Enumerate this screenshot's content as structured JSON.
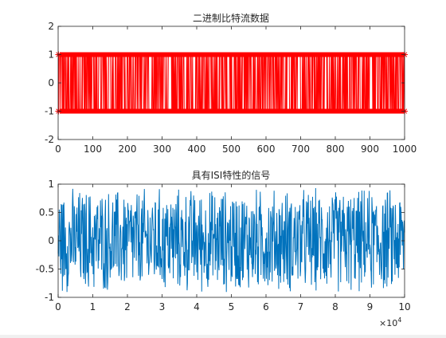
{
  "chart_data": [
    {
      "type": "line",
      "title": "二进制比特流数据",
      "xlabel": "",
      "ylabel": "",
      "xlim": [
        0,
        1000
      ],
      "ylim": [
        -2,
        2
      ],
      "xticks": [
        0,
        100,
        200,
        300,
        400,
        500,
        600,
        700,
        800,
        900,
        1000
      ],
      "xtick_labels": [
        "0",
        "100",
        "200",
        "300",
        "400",
        "500",
        "600",
        "700",
        "800",
        "900",
        "1000"
      ],
      "yticks": [
        -2,
        -1,
        0,
        1,
        2
      ],
      "ytick_labels": [
        "-2",
        "-1",
        "0",
        "1",
        "2"
      ],
      "series": [
        {
          "color": "#ff0000",
          "marker": "star",
          "description_values": "random binary sequence of 1000 samples with values +1 and -1",
          "sample_count": 1000,
          "levels": [
            1,
            -1
          ]
        }
      ],
      "grid": false
    },
    {
      "type": "line",
      "title": "具有ISI特性的信号",
      "xlabel": "",
      "ylabel": "",
      "xlim": [
        0,
        100000
      ],
      "ylim": [
        -1,
        1
      ],
      "xticks": [
        0,
        1,
        2,
        3,
        4,
        5,
        6,
        7,
        8,
        9,
        10
      ],
      "xtick_labels": [
        "0",
        "1",
        "2",
        "3",
        "4",
        "5",
        "6",
        "7",
        "8",
        "9",
        "10"
      ],
      "x_exponent_label": "×10",
      "x_exponent_power": "4",
      "yticks": [
        -1,
        -0.5,
        0,
        0.5,
        1
      ],
      "ytick_labels": [
        "-1",
        "-0.5",
        "0",
        "0.5",
        "1"
      ],
      "series": [
        {
          "color": "#0072bd",
          "marker": "none",
          "range": [
            -1,
            1
          ]
        }
      ],
      "grid": false
    }
  ]
}
